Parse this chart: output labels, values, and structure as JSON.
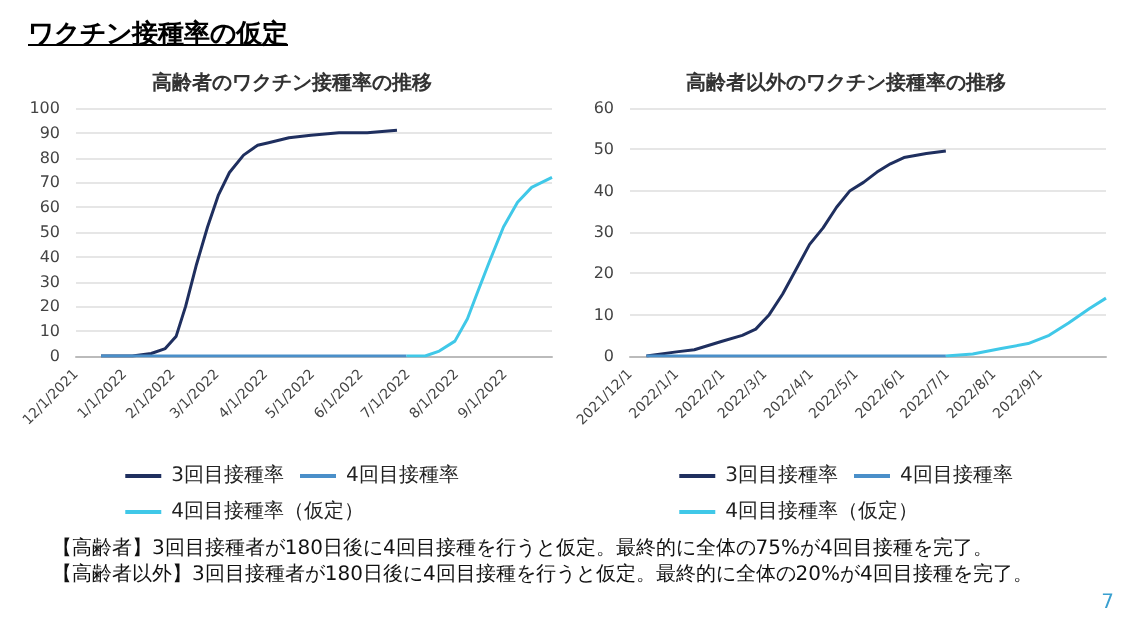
{
  "chart_data": [
    {
      "type": "line",
      "title": "高齢者のワクチン接種率の推移",
      "annotations": [
        "ワクチン接種率の仮定"
      ],
      "xlim": [
        "2021-12-01",
        "2022-10-01"
      ],
      "xticks": [
        {
          "value": "2021-12-01",
          "label": "12/1/2021"
        },
        {
          "value": "2022-01-01",
          "label": "1/1/2022"
        },
        {
          "value": "2022-02-01",
          "label": "2/1/2022"
        },
        {
          "value": "2022-03-01",
          "label": "3/1/2022"
        },
        {
          "value": "2022-04-01",
          "label": "4/1/2022"
        },
        {
          "value": "2022-05-01",
          "label": "5/1/2022"
        },
        {
          "value": "2022-06-01",
          "label": "6/1/2022"
        },
        {
          "value": "2022-07-01",
          "label": "7/1/2022"
        },
        {
          "value": "2022-08-01",
          "label": "8/1/2022"
        },
        {
          "value": "2022-09-01",
          "label": "9/1/2022"
        }
      ],
      "ylim": [
        0,
        100
      ],
      "yticks": [
        0,
        10,
        20,
        30,
        40,
        50,
        60,
        70,
        80,
        90,
        100
      ],
      "grid": "y",
      "legend": "bottom",
      "marker": "none",
      "line_style": "solid",
      "series": [
        {
          "name": "3回目接種率",
          "color": "#1f2f5f",
          "x": [
            "2021-12-17",
            "2022-01-06",
            "2022-01-18",
            "2022-01-27",
            "2022-02-03",
            "2022-02-09",
            "2022-02-16",
            "2022-02-23",
            "2022-03-02",
            "2022-03-09",
            "2022-03-18",
            "2022-03-27",
            "2022-04-03",
            "2022-04-16",
            "2022-04-30",
            "2022-05-18",
            "2022-06-05",
            "2022-06-24"
          ],
          "values": [
            0,
            0,
            1,
            3,
            8,
            20,
            37,
            52,
            65,
            74,
            81,
            85,
            86,
            88,
            89,
            90,
            90,
            91
          ]
        },
        {
          "name": "4回目接種率",
          "color": "#4a8fc9",
          "x": [
            "2021-12-17",
            "2022-06-30"
          ],
          "values": [
            0,
            0
          ]
        },
        {
          "name": "4回目接種率（仮定）",
          "color": "#40c8e8",
          "x": [
            "2022-06-30",
            "2022-07-12",
            "2022-07-21",
            "2022-07-31",
            "2022-08-08",
            "2022-08-14",
            "2022-08-22",
            "2022-08-31",
            "2022-09-09",
            "2022-09-18",
            "2022-10-01"
          ],
          "values": [
            0,
            0,
            2,
            6,
            15,
            25,
            38,
            52,
            62,
            68,
            72
          ]
        }
      ]
    },
    {
      "type": "line",
      "title": "高齢者以外のワクチン接種率の推移",
      "annotations": [
        "【高齢者】3回目接種者が180日後に4回目接種を行うと仮定。最終的に全体の75%が4回目接種を完了。",
        "【高齢者以外】3回目接種者が180日後に4回目接種を行うと仮定。最終的に全体の20%が4回目接種を完了。",
        "7"
      ],
      "xlim": [
        "2021-12-01",
        "2022-10-15"
      ],
      "xticks": [
        {
          "value": "2021-12-01",
          "label": "2021/12/1"
        },
        {
          "value": "2022-01-01",
          "label": "2022/1/1"
        },
        {
          "value": "2022-02-01",
          "label": "2022/2/1"
        },
        {
          "value": "2022-03-01",
          "label": "2022/3/1"
        },
        {
          "value": "2022-04-01",
          "label": "2022/4/1"
        },
        {
          "value": "2022-05-01",
          "label": "2022/5/1"
        },
        {
          "value": "2022-06-01",
          "label": "2022/6/1"
        },
        {
          "value": "2022-07-01",
          "label": "2022/7/1"
        },
        {
          "value": "2022-08-01",
          "label": "2022/8/1"
        },
        {
          "value": "2022-09-01",
          "label": "2022/9/1"
        }
      ],
      "ylim": [
        0,
        60
      ],
      "yticks": [
        0,
        10,
        20,
        30,
        40,
        50,
        60
      ],
      "grid": "y",
      "legend": "bottom",
      "marker": "none",
      "line_style": "solid",
      "series": [
        {
          "name": "3回目接種率",
          "color": "#1f2f5f",
          "x": [
            "2021-12-12",
            "2022-01-01",
            "2022-01-13",
            "2022-01-31",
            "2022-02-14",
            "2022-02-23",
            "2022-03-04",
            "2022-03-13",
            "2022-03-22",
            "2022-03-31",
            "2022-04-09",
            "2022-04-18",
            "2022-04-27",
            "2022-05-06",
            "2022-05-15",
            "2022-05-24",
            "2022-06-02",
            "2022-06-17",
            "2022-06-30"
          ],
          "values": [
            0,
            1,
            1.5,
            3.5,
            5,
            6.5,
            10,
            15,
            21,
            27,
            31,
            36,
            40,
            42,
            44.5,
            46.5,
            48,
            49,
            49.6
          ]
        },
        {
          "name": "4回目接種率",
          "color": "#4a8fc9",
          "x": [
            "2021-12-12",
            "2022-06-30"
          ],
          "values": [
            0,
            0
          ]
        },
        {
          "name": "4回目接種率（仮定）",
          "color": "#40c8e8",
          "x": [
            "2022-06-30",
            "2022-07-18",
            "2022-08-06",
            "2022-08-24",
            "2022-09-07",
            "2022-09-20",
            "2022-10-04",
            "2022-10-15"
          ],
          "values": [
            0,
            0.5,
            1.8,
            3,
            5,
            8,
            11.5,
            14
          ]
        }
      ]
    }
  ]
}
